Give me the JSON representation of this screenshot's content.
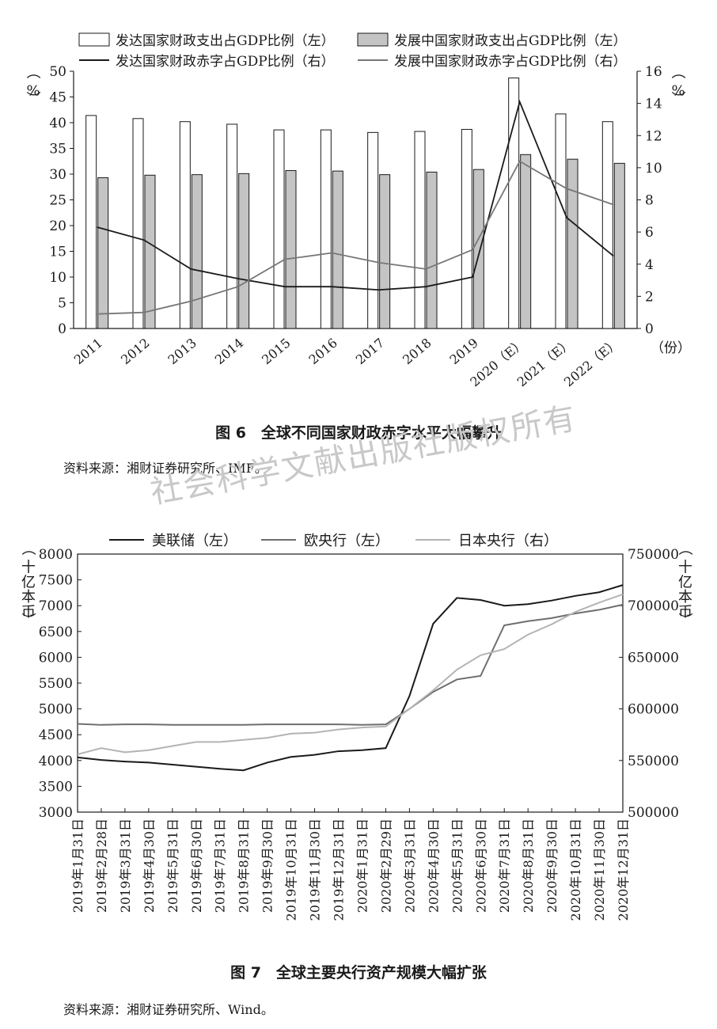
{
  "figure6": {
    "caption": "图 6　全球不同国家财政赤字水平大幅攀升",
    "source": "资料来源：湘财证券研究所、IMF。"
  },
  "figure7": {
    "caption": "图 7　全球主要央行资产规模大幅扩张",
    "source": "资料来源：湘财证券研究所、Wind。"
  },
  "watermark": "社会科学文献出版社版权所有",
  "chart_data": [
    {
      "type": "bar",
      "categories": [
        "2011",
        "2012",
        "2013",
        "2014",
        "2015",
        "2016",
        "2017",
        "2018",
        "2019",
        "2020（E）",
        "2021（E）",
        "2022（E）"
      ],
      "x_unit": "（份）",
      "y_left": {
        "label": "（%）",
        "lim": [
          0,
          50
        ],
        "ticks": [
          0,
          5,
          10,
          15,
          20,
          25,
          30,
          35,
          40,
          45,
          50
        ]
      },
      "y_right": {
        "label": "（%）",
        "lim": [
          0,
          16
        ],
        "ticks": [
          0,
          2,
          4,
          6,
          8,
          10,
          12,
          14,
          16
        ]
      },
      "legend_position": "top",
      "series": [
        {
          "name": "发达国家财政支出占GDP比例（左）",
          "kind": "bar",
          "axis": "left",
          "color": "#ffffff",
          "values": [
            41.4,
            40.8,
            40.2,
            39.7,
            38.6,
            38.6,
            38.1,
            38.3,
            38.7,
            48.7,
            41.7,
            40.2
          ]
        },
        {
          "name": "发展中国家财政支出占GDP比例（左）",
          "kind": "bar",
          "axis": "left",
          "color": "#c4c4c4",
          "values": [
            29.3,
            29.8,
            29.9,
            30.1,
            30.7,
            30.6,
            29.9,
            30.4,
            30.9,
            33.8,
            32.9,
            32.1
          ]
        },
        {
          "name": "发达国家财政赤字占GDP比例（右）",
          "kind": "line",
          "axis": "right",
          "color": "#1a1a1a",
          "values": [
            6.3,
            5.5,
            3.7,
            3.1,
            2.6,
            2.6,
            2.4,
            2.6,
            3.2,
            14.1,
            6.9,
            4.5
          ]
        },
        {
          "name": "发展中国家财政赤字占GDP比例（右）",
          "kind": "line",
          "axis": "right",
          "color": "#777777",
          "values": [
            0.9,
            1.0,
            1.7,
            2.6,
            4.3,
            4.7,
            4.1,
            3.7,
            4.9,
            10.4,
            8.7,
            7.7
          ]
        }
      ]
    },
    {
      "type": "line",
      "x": [
        "2019年1月31日",
        "2019年2月28日",
        "2019年3月31日",
        "2019年4月30日",
        "2019年5月31日",
        "2019年6月30日",
        "2019年7月31日",
        "2019年8月31日",
        "2019年9月30日",
        "2019年10月31日",
        "2019年11月30日",
        "2019年12月31日",
        "2020年1月31日",
        "2020年2月29日",
        "2020年3月31日",
        "2020年4月30日",
        "2020年5月31日",
        "2020年6月30日",
        "2020年7月31日",
        "2020年8月31日",
        "2020年9月30日",
        "2020年10月31日",
        "2020年11月30日",
        "2020年12月31日"
      ],
      "y_left": {
        "label": "（十亿本币）",
        "lim": [
          3000,
          8000
        ],
        "ticks": [
          3000,
          3500,
          4000,
          4500,
          5000,
          5500,
          6000,
          6500,
          7000,
          7500,
          8000
        ]
      },
      "y_right": {
        "label": "（十亿本币）",
        "lim": [
          500000,
          750000
        ],
        "ticks": [
          500000,
          550000,
          600000,
          650000,
          700000,
          750000
        ]
      },
      "legend_position": "top",
      "series": [
        {
          "name": "美联储（左）",
          "axis": "left",
          "color": "#1a1a1a",
          "values": [
            4060,
            4010,
            3980,
            3960,
            3920,
            3880,
            3840,
            3810,
            3960,
            4070,
            4110,
            4180,
            4200,
            4240,
            5250,
            6650,
            7150,
            7110,
            7000,
            7030,
            7100,
            7190,
            7260,
            7400
          ]
        },
        {
          "name": "欧央行（左）",
          "axis": "left",
          "color": "#6e6e6e",
          "values": [
            4710,
            4690,
            4700,
            4700,
            4690,
            4690,
            4690,
            4690,
            4700,
            4700,
            4700,
            4700,
            4690,
            4700,
            5000,
            5330,
            5570,
            5640,
            6620,
            6700,
            6760,
            6850,
            6920,
            7020
          ]
        },
        {
          "name": "日本央行（右）",
          "axis": "right",
          "color": "#b4b4b4",
          "values": [
            556000,
            562000,
            558000,
            560000,
            564000,
            568000,
            568000,
            570000,
            572000,
            576000,
            577000,
            580000,
            582000,
            583000,
            600000,
            618000,
            638000,
            652000,
            658000,
            672000,
            682000,
            694000,
            703000,
            711000
          ]
        }
      ]
    }
  ]
}
